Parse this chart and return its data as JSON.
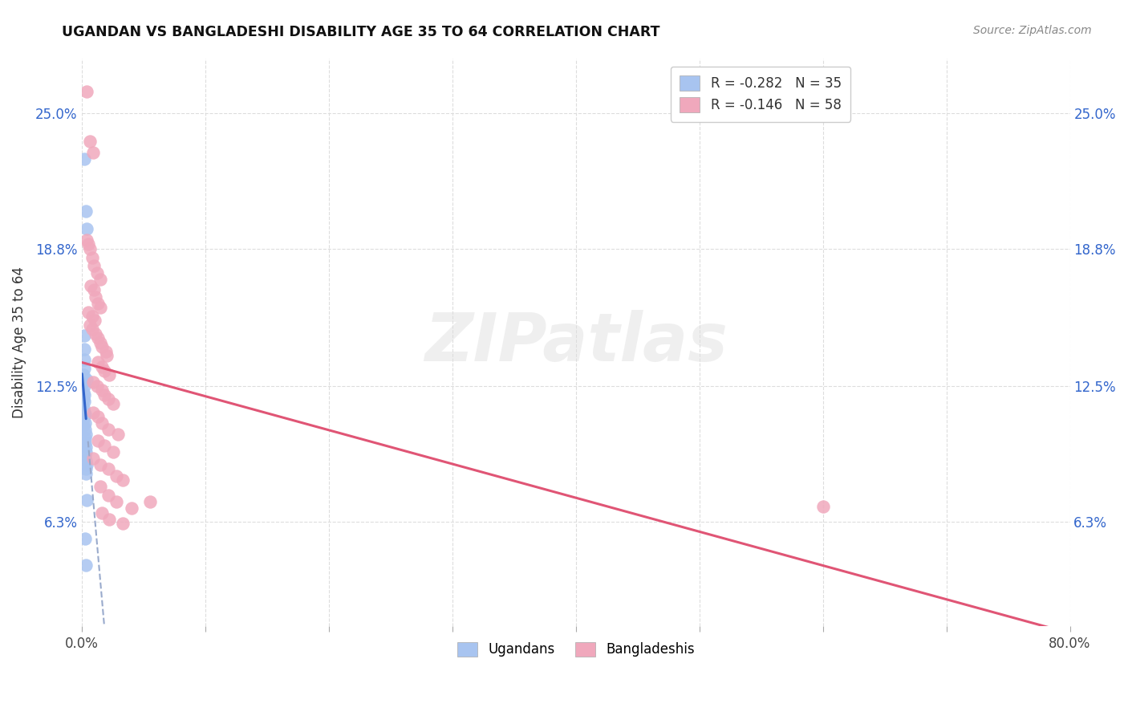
{
  "title": "UGANDAN VS BANGLADESHI DISABILITY AGE 35 TO 64 CORRELATION CHART",
  "source": "Source: ZipAtlas.com",
  "ylabel_label": "Disability Age 35 to 64",
  "ylabel_ticks": [
    6.3,
    12.5,
    18.8,
    25.0
  ],
  "ylabel_tick_labels": [
    "6.3%",
    "12.5%",
    "18.8%",
    "25.0%"
  ],
  "xmin": 0.0,
  "xmax": 80.0,
  "ymin": 1.5,
  "ymax": 27.5,
  "ugandan_color": "#a8c4f0",
  "bangladeshi_color": "#f0a8bc",
  "ugandan_line_color": "#3366cc",
  "bangladeshi_line_color": "#e05575",
  "ugandan_dash_color": "#aabcdd",
  "watermark_text": "ZIPatlas",
  "ugandan_R": -0.282,
  "ugandan_N": 35,
  "bangladeshi_R": -0.146,
  "bangladeshi_N": 58,
  "ugandan_points": [
    [
      0.2,
      22.9
    ],
    [
      0.3,
      20.5
    ],
    [
      0.4,
      19.7
    ],
    [
      0.15,
      14.8
    ],
    [
      0.15,
      14.2
    ],
    [
      0.15,
      13.7
    ],
    [
      0.18,
      13.3
    ],
    [
      0.12,
      13.0
    ],
    [
      0.12,
      12.7
    ],
    [
      0.15,
      12.5
    ],
    [
      0.12,
      12.2
    ],
    [
      0.15,
      12.1
    ],
    [
      0.12,
      11.9
    ],
    [
      0.2,
      11.8
    ],
    [
      0.12,
      11.5
    ],
    [
      0.18,
      11.3
    ],
    [
      0.22,
      11.2
    ],
    [
      0.12,
      11.0
    ],
    [
      0.22,
      10.8
    ],
    [
      0.12,
      10.7
    ],
    [
      0.22,
      10.5
    ],
    [
      0.3,
      10.3
    ],
    [
      0.22,
      10.1
    ],
    [
      0.22,
      9.9
    ],
    [
      0.3,
      9.7
    ],
    [
      0.3,
      9.5
    ],
    [
      0.22,
      9.3
    ],
    [
      0.32,
      9.1
    ],
    [
      0.4,
      8.9
    ],
    [
      0.32,
      8.7
    ],
    [
      0.32,
      8.5
    ],
    [
      0.4,
      12.8
    ],
    [
      0.4,
      7.3
    ],
    [
      0.22,
      5.5
    ],
    [
      0.3,
      4.3
    ]
  ],
  "bangladeshi_points": [
    [
      0.4,
      26.0
    ],
    [
      0.6,
      23.7
    ],
    [
      0.9,
      23.2
    ],
    [
      0.4,
      19.2
    ],
    [
      0.5,
      19.0
    ],
    [
      0.65,
      18.8
    ],
    [
      0.8,
      18.4
    ],
    [
      0.95,
      18.0
    ],
    [
      1.2,
      17.7
    ],
    [
      1.5,
      17.4
    ],
    [
      0.7,
      17.1
    ],
    [
      0.95,
      16.9
    ],
    [
      1.1,
      16.6
    ],
    [
      1.3,
      16.3
    ],
    [
      1.5,
      16.1
    ],
    [
      0.5,
      15.9
    ],
    [
      0.8,
      15.7
    ],
    [
      1.0,
      15.5
    ],
    [
      0.6,
      15.3
    ],
    [
      0.8,
      15.1
    ],
    [
      1.1,
      14.9
    ],
    [
      1.3,
      14.7
    ],
    [
      1.5,
      14.5
    ],
    [
      1.6,
      14.3
    ],
    [
      1.9,
      14.1
    ],
    [
      2.0,
      13.9
    ],
    [
      1.3,
      13.6
    ],
    [
      1.6,
      13.4
    ],
    [
      1.8,
      13.2
    ],
    [
      2.2,
      13.0
    ],
    [
      0.9,
      12.7
    ],
    [
      1.2,
      12.5
    ],
    [
      1.6,
      12.3
    ],
    [
      1.8,
      12.1
    ],
    [
      2.1,
      11.9
    ],
    [
      2.5,
      11.7
    ],
    [
      0.9,
      11.3
    ],
    [
      1.3,
      11.1
    ],
    [
      1.6,
      10.8
    ],
    [
      2.1,
      10.5
    ],
    [
      2.9,
      10.3
    ],
    [
      1.3,
      10.0
    ],
    [
      1.8,
      9.8
    ],
    [
      2.5,
      9.5
    ],
    [
      0.9,
      9.2
    ],
    [
      1.5,
      8.9
    ],
    [
      2.1,
      8.7
    ],
    [
      2.8,
      8.4
    ],
    [
      3.3,
      8.2
    ],
    [
      1.5,
      7.9
    ],
    [
      2.1,
      7.5
    ],
    [
      2.8,
      7.2
    ],
    [
      4.0,
      6.9
    ],
    [
      1.6,
      6.7
    ],
    [
      2.2,
      6.4
    ],
    [
      60.0,
      7.0
    ],
    [
      3.3,
      6.2
    ],
    [
      5.5,
      7.2
    ]
  ]
}
